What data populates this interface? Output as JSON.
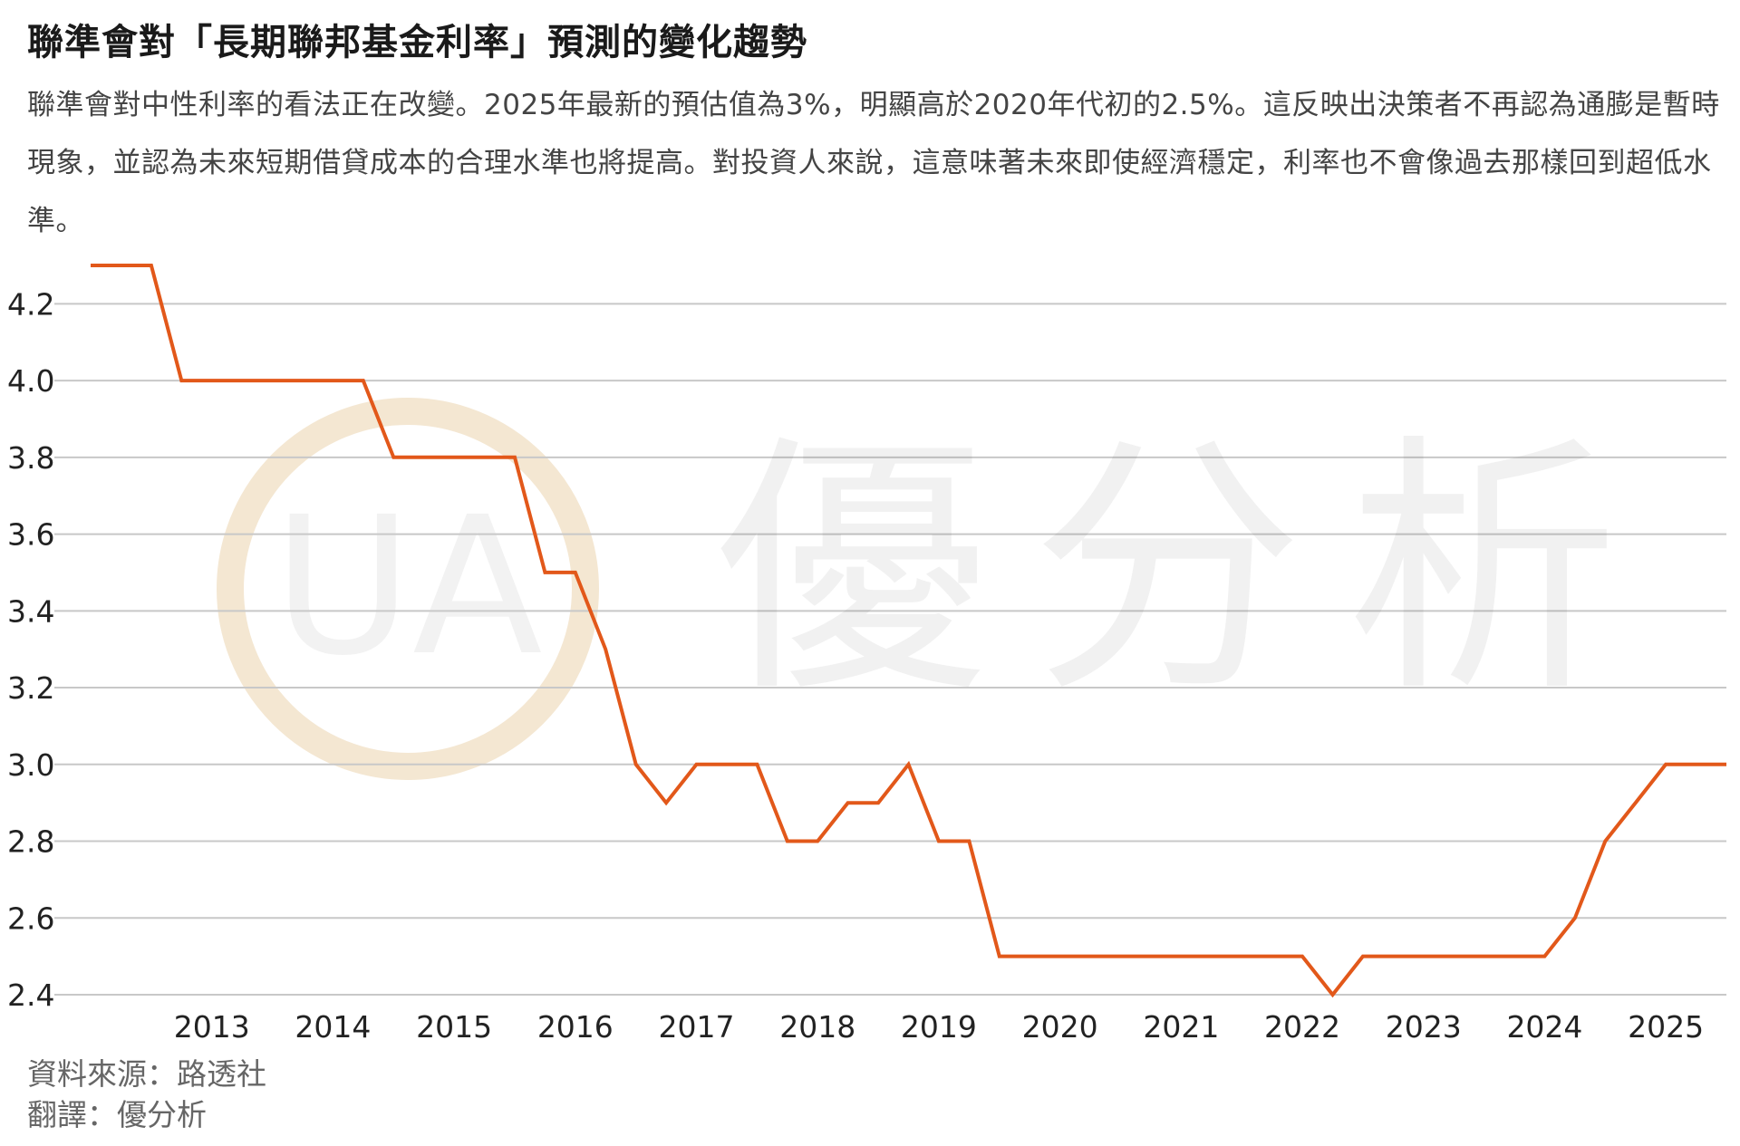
{
  "title": "聯準會對「長期聯邦基金利率」預測的變化趨勢",
  "subtitle": "聯準會對中性利率的看法正在改變。2025年最新的預估值為3%，明顯高於2020年代初的2.5%。這反映出決策者不再認為通膨是暫時現象，並認為未來短期借貸成本的合理水準也將提高。對投資人來說，這意味著未來即使經濟穩定，利率也不會像過去那樣回到超低水準。",
  "watermark": {
    "text": "優分析",
    "logo_letters": "UA"
  },
  "source": {
    "data_source": "資料來源：路透社",
    "translation": "翻譯：優分析"
  },
  "colors": {
    "line": "#E2581A",
    "grid": "#C8C8C8",
    "logo_ring": "#F4E7D2",
    "axis_text": "#222222"
  },
  "chart_data": {
    "type": "line",
    "title": "聯準會對「長期聯邦基金利率」預測的變化趨勢",
    "xlabel": "",
    "ylabel": "",
    "x_ticks": [
      "2013",
      "2014",
      "2015",
      "2016",
      "2017",
      "2018",
      "2019",
      "2020",
      "2021",
      "2022",
      "2023",
      "2024",
      "2025"
    ],
    "y_ticks": [
      2.4,
      2.6,
      2.8,
      3.0,
      3.2,
      3.4,
      3.6,
      3.8,
      4.0,
      4.2
    ],
    "ylim": [
      2.4,
      4.3
    ],
    "xlim": [
      2012.0,
      2025.5
    ],
    "grid": true,
    "legend": "none",
    "series": [
      {
        "x": [
          2012.0,
          2012.25,
          2012.25,
          2012.5,
          2012.5,
          2012.75,
          2012.75,
          2013.0,
          2013.0,
          2013.25,
          2013.25,
          2013.5,
          2013.5,
          2013.75,
          2013.75,
          2014.0,
          2014.0,
          2014.25,
          2014.25,
          2014.5,
          2014.5,
          2014.75,
          2014.75,
          2015.0,
          2015.0,
          2015.25,
          2015.25,
          2015.5,
          2015.5,
          2015.75,
          2015.75,
          2016.0,
          2016.0,
          2016.25,
          2016.25,
          2016.5,
          2016.5,
          2016.75,
          2016.75,
          2017.0,
          2017.0,
          2017.25,
          2017.25,
          2017.5,
          2017.5,
          2017.75,
          2017.75,
          2018.0,
          2018.0,
          2018.25,
          2018.25,
          2018.5,
          2018.5,
          2018.75,
          2018.75,
          2019.0,
          2019.0,
          2019.25,
          2019.25,
          2019.5,
          2019.5,
          2019.75,
          2019.75,
          2020.0,
          2020.0,
          2020.25,
          2020.25,
          2020.5,
          2020.5,
          2020.75,
          2020.75,
          2021.0,
          2021.0,
          2021.25,
          2021.25,
          2021.5,
          2021.5,
          2021.75,
          2021.75,
          2022.0,
          2022.0,
          2022.25,
          2022.25,
          2022.5,
          2022.5,
          2022.75,
          2022.75,
          2023.0,
          2023.0,
          2023.25,
          2023.25,
          2023.5,
          2023.5,
          2023.75,
          2023.75,
          2024.0,
          2024.0,
          2024.25,
          2024.25,
          2024.5,
          2024.5,
          2024.75,
          2024.75,
          2025.0,
          2025.0,
          2025.25,
          2025.25,
          2025.5
        ],
        "y": [
          4.3,
          4.3,
          4.3,
          4.3,
          4.3,
          4.0,
          4.0,
          4.0,
          4.0,
          4.0,
          4.0,
          4.0,
          4.0,
          4.0,
          4.0,
          4.0,
          4.0,
          4.0,
          4.0,
          3.8,
          3.8,
          3.8,
          3.8,
          3.8,
          3.8,
          3.8,
          3.8,
          3.8,
          3.8,
          3.5,
          3.5,
          3.5,
          3.5,
          3.3,
          3.3,
          3.0,
          3.0,
          2.9,
          2.9,
          3.0,
          3.0,
          3.0,
          3.0,
          3.0,
          3.0,
          2.8,
          2.8,
          2.8,
          2.8,
          2.9,
          2.9,
          2.9,
          2.9,
          3.0,
          3.0,
          2.8,
          2.8,
          2.8,
          2.8,
          2.5,
          2.5,
          2.5,
          2.5,
          2.5,
          2.5,
          2.5,
          2.5,
          2.5,
          2.5,
          2.5,
          2.5,
          2.5,
          2.5,
          2.5,
          2.5,
          2.5,
          2.5,
          2.5,
          2.5,
          2.5,
          2.5,
          2.4,
          2.4,
          2.5,
          2.5,
          2.5,
          2.5,
          2.5,
          2.5,
          2.5,
          2.5,
          2.5,
          2.5,
          2.5,
          2.5,
          2.5,
          2.5,
          2.6,
          2.6,
          2.8,
          2.8,
          2.9,
          2.9,
          3.0,
          3.0,
          3.0,
          3.0,
          3.0
        ]
      }
    ]
  }
}
